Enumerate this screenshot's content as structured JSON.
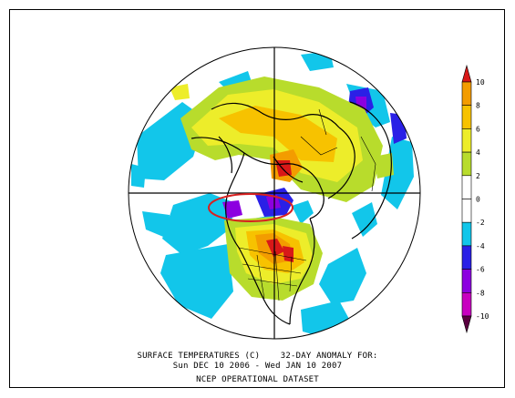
{
  "caption": {
    "line1": "SURFACE TEMPERATURES (C)    32-DAY ANOMALY FOR:",
    "line2": "Sun DEC 10 2006 - Wed JAN 10 2007",
    "line3": "NCEP OPERATIONAL DATASET"
  },
  "colorbar": {
    "labels": [
      "10",
      "8",
      "6",
      "4",
      "2",
      "0",
      "-2",
      "-4",
      "-6",
      "-8",
      "-10"
    ],
    "bands": [
      {
        "range": "8 to 10",
        "color": "#f39c00"
      },
      {
        "range": "6 to 8",
        "color": "#f7c200"
      },
      {
        "range": "4 to 6",
        "color": "#eded2a"
      },
      {
        "range": "2 to 4",
        "color": "#b8dc2c"
      },
      {
        "range": "0 to 2",
        "color": "#ffffff"
      },
      {
        "range": "-2 to 0",
        "color": "#ffffff"
      },
      {
        "range": "-4 to -2",
        "color": "#12c6ea"
      },
      {
        "range": "-6 to -4",
        "color": "#2a20e6"
      },
      {
        "range": "-8 to -6",
        "color": "#8c00e0"
      },
      {
        "range": "-10 to -8",
        "color": "#c800c0"
      }
    ],
    "top_arrow_color": "#d81818",
    "bottom_arrow_color": "#5a0040"
  },
  "map": {
    "projection": "north-polar-stereographic",
    "highlight_color": "#d82020"
  }
}
